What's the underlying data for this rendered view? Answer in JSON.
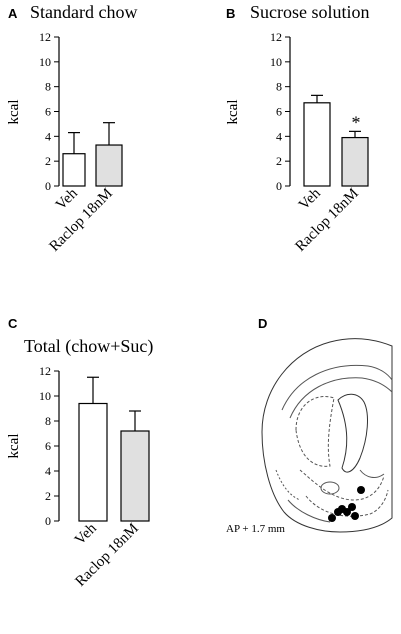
{
  "chart_data": [
    {
      "panel": "A",
      "type": "bar",
      "title": "Standard chow",
      "ylabel": "kcal",
      "categories": [
        "Veh",
        "Raclop 18nM"
      ],
      "values": [
        2.6,
        3.3
      ],
      "errors": [
        1.7,
        1.8
      ],
      "bar_colors": [
        "#ffffff",
        "#e0e0e0"
      ],
      "ylim": [
        0,
        12
      ],
      "yticks": [
        "0",
        "2",
        "4",
        "6",
        "8",
        "10",
        "12"
      ],
      "annotations": []
    },
    {
      "panel": "B",
      "type": "bar",
      "title": "Sucrose solution",
      "ylabel": "kcal",
      "categories": [
        "Veh",
        "Raclop 18nM"
      ],
      "values": [
        6.7,
        3.9
      ],
      "errors": [
        0.6,
        0.5
      ],
      "bar_colors": [
        "#ffffff",
        "#e0e0e0"
      ],
      "ylim": [
        0,
        12
      ],
      "yticks": [
        "0",
        "2",
        "4",
        "6",
        "8",
        "10",
        "12"
      ],
      "annotations": [
        "",
        "*"
      ]
    },
    {
      "panel": "C",
      "type": "bar",
      "title": "Total (chow+Suc)",
      "ylabel": "kcal",
      "categories": [
        "Veh",
        "Raclop 18nM"
      ],
      "values": [
        9.4,
        7.2
      ],
      "errors": [
        2.1,
        1.6
      ],
      "bar_colors": [
        "#ffffff",
        "#e0e0e0"
      ],
      "ylim": [
        0,
        12
      ],
      "yticks": [
        "0",
        "2",
        "4",
        "6",
        "8",
        "10",
        "12"
      ],
      "annotations": []
    }
  ],
  "diagram": {
    "panel": "D",
    "label": "AP + 1.7 mm"
  }
}
